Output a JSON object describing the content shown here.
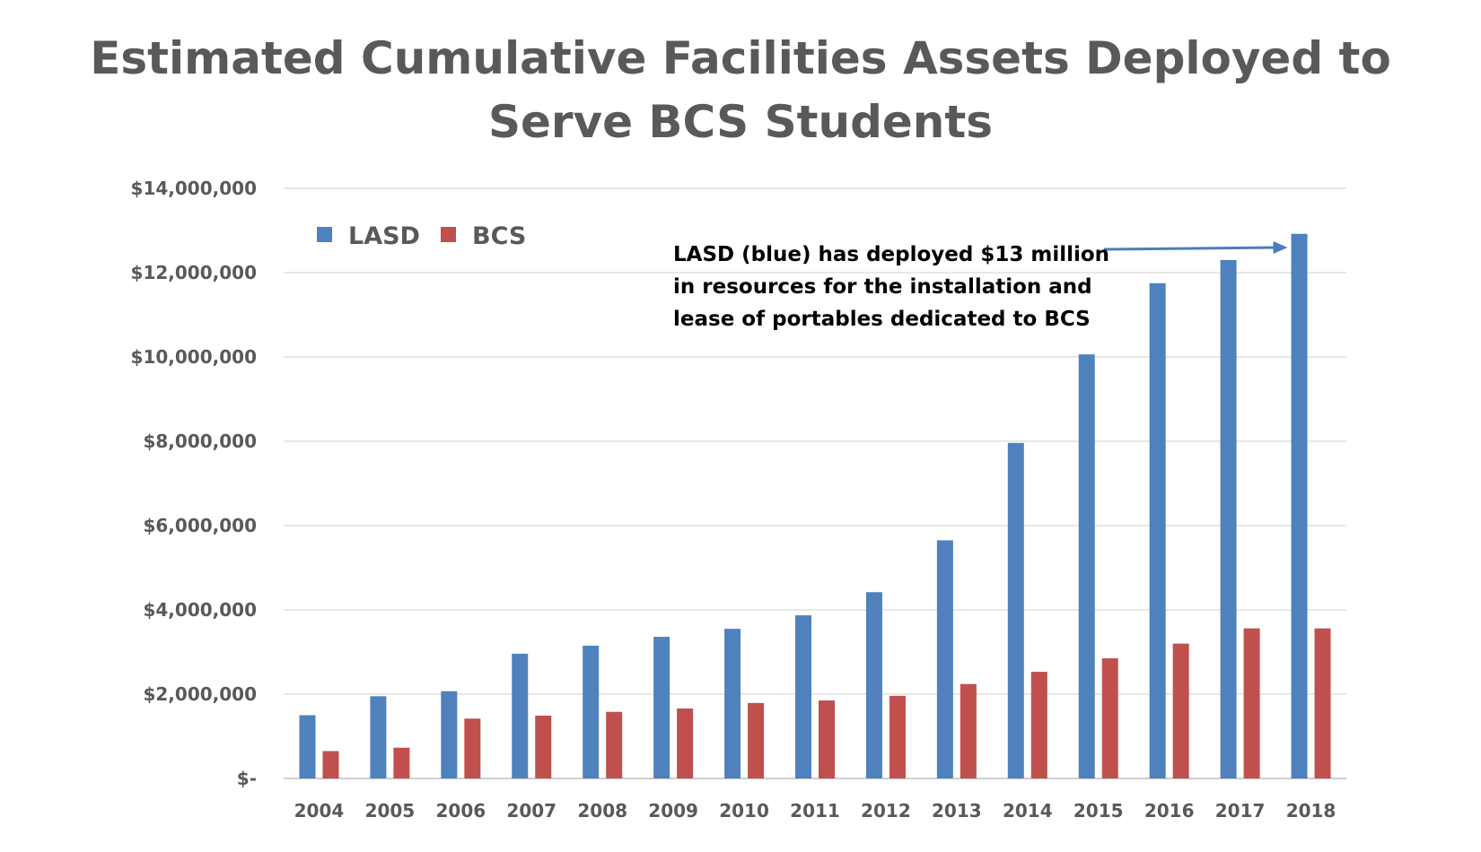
{
  "colors": {
    "lasd": "#4f81bd",
    "bcs": "#c0504d",
    "text": "#595959",
    "grid": "#d9d9d9",
    "arrow": "#4a7ebb"
  },
  "chart_data": {
    "type": "bar",
    "title_lines": [
      "Estimated Cumulative Facilities Assets Deployed to",
      "Serve BCS Students"
    ],
    "xlabel": "",
    "ylabel": "",
    "ylim": [
      0,
      14000000
    ],
    "y_ticks": [
      {
        "value": 0,
        "label": "$-"
      },
      {
        "value": 2000000,
        "label": "$2,000,000"
      },
      {
        "value": 4000000,
        "label": "$4,000,000"
      },
      {
        "value": 6000000,
        "label": "$6,000,000"
      },
      {
        "value": 8000000,
        "label": "$8,000,000"
      },
      {
        "value": 10000000,
        "label": "$10,000,000"
      },
      {
        "value": 12000000,
        "label": "$12,000,000"
      },
      {
        "value": 14000000,
        "label": "$14,000,000"
      }
    ],
    "grid": true,
    "legend_position": "top-left",
    "categories": [
      "2004",
      "2005",
      "2006",
      "2007",
      "2008",
      "2009",
      "2010",
      "2011",
      "2012",
      "2013",
      "2014",
      "2015",
      "2016",
      "2017",
      "2018"
    ],
    "series": [
      {
        "name": "LASD",
        "color_key": "lasd",
        "values": [
          1500000,
          1950000,
          2070000,
          2960000,
          3150000,
          3360000,
          3550000,
          3870000,
          4420000,
          5650000,
          7960000,
          10060000,
          11750000,
          12300000,
          12920000
        ]
      },
      {
        "name": "BCS",
        "color_key": "bcs",
        "values": [
          650000,
          730000,
          1420000,
          1490000,
          1580000,
          1660000,
          1790000,
          1850000,
          1960000,
          2240000,
          2530000,
          2850000,
          3200000,
          3560000,
          3560000
        ]
      }
    ],
    "annotation": {
      "lines": [
        "LASD (blue) has deployed $13 million",
        "in resources for the installation  and",
        "lease of portables dedicated to BCS"
      ],
      "target_category": "2018",
      "target_series": "LASD"
    }
  }
}
